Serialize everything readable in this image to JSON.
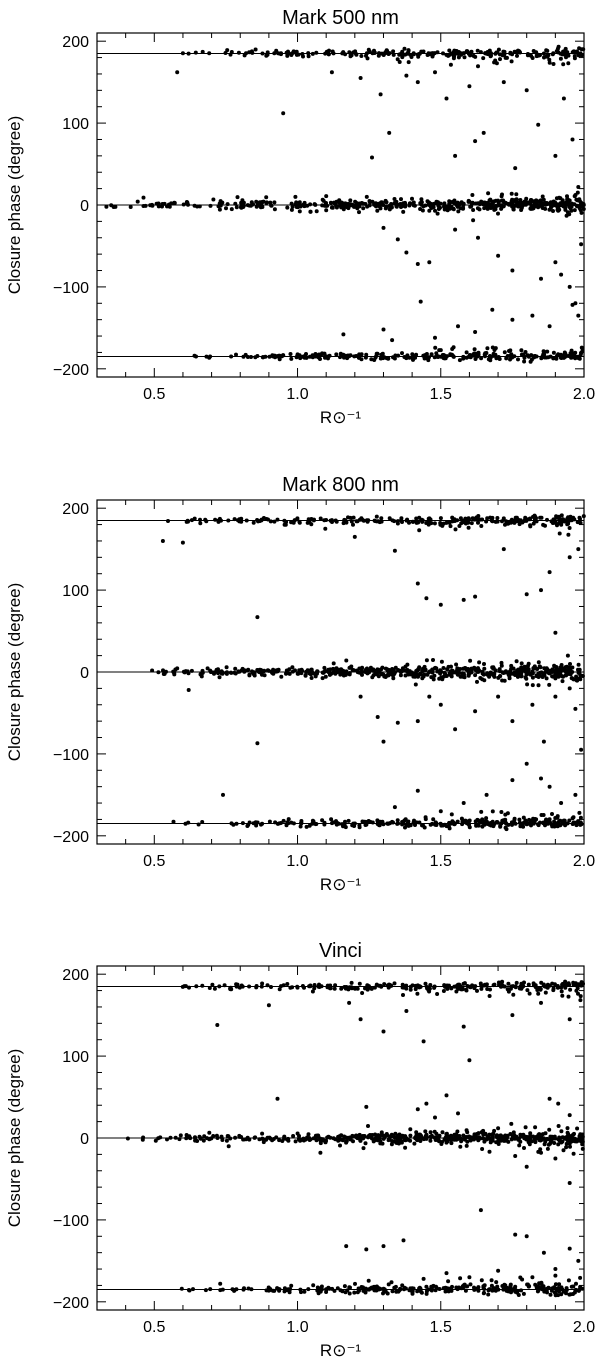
{
  "figure": {
    "background": "#ffffff",
    "ink": "#000000"
  },
  "chart_data": [
    {
      "type": "scatter",
      "title": "Mark 500 nm",
      "xlabel": "R⊙⁻¹",
      "ylabel": "Closure phase (degree)",
      "xlim": [
        0.3,
        2.0
      ],
      "ylim": [
        -210,
        210
      ],
      "xticks": [
        "0.5",
        "1.0",
        "1.5",
        "2.0"
      ],
      "yticks": [
        "200",
        "100",
        "0",
        "−100",
        "−200"
      ],
      "reference_lines_y": [
        185,
        0,
        -185
      ],
      "grid": false,
      "seed": 11,
      "clusters": [
        {
          "y": 185,
          "x_from": 0.5,
          "x_to": 2.0,
          "count": 260,
          "spread": 2.5,
          "tail": -1,
          "tail_prob": 0.15
        },
        {
          "y": 0,
          "x_from": 0.33,
          "x_to": 2.0,
          "count": 520,
          "spread": 3,
          "tail": 0,
          "tail_prob": 0.3
        },
        {
          "y": -185,
          "x_from": 0.6,
          "x_to": 2.0,
          "count": 280,
          "spread": 2.5,
          "tail": 1,
          "tail_prob": 0.22
        }
      ],
      "outliers": [
        [
          0.58,
          162
        ],
        [
          0.95,
          112
        ],
        [
          1.12,
          162
        ],
        [
          1.22,
          155
        ],
        [
          1.26,
          58
        ],
        [
          1.29,
          135
        ],
        [
          1.32,
          88
        ],
        [
          1.38,
          158
        ],
        [
          1.42,
          150
        ],
        [
          1.48,
          162
        ],
        [
          1.52,
          130
        ],
        [
          1.55,
          60
        ],
        [
          1.6,
          145
        ],
        [
          1.62,
          78
        ],
        [
          1.65,
          88
        ],
        [
          1.72,
          150
        ],
        [
          1.76,
          45
        ],
        [
          1.8,
          140
        ],
        [
          1.84,
          98
        ],
        [
          1.9,
          60
        ],
        [
          1.93,
          130
        ],
        [
          1.96,
          80
        ],
        [
          1.98,
          22
        ],
        [
          1.3,
          -28
        ],
        [
          1.35,
          -42
        ],
        [
          1.38,
          -58
        ],
        [
          1.42,
          -72
        ],
        [
          1.46,
          -70
        ],
        [
          1.55,
          -30
        ],
        [
          1.63,
          -40
        ],
        [
          1.7,
          -62
        ],
        [
          1.75,
          -80
        ],
        [
          1.85,
          -90
        ],
        [
          1.9,
          -70
        ],
        [
          1.95,
          -100
        ],
        [
          1.97,
          -120
        ],
        [
          1.98,
          -135
        ],
        [
          1.99,
          -48
        ],
        [
          1.16,
          -158
        ],
        [
          1.3,
          -152
        ],
        [
          1.33,
          -165
        ],
        [
          1.43,
          -118
        ],
        [
          1.48,
          -162
        ],
        [
          1.56,
          -148
        ],
        [
          1.62,
          -155
        ],
        [
          1.68,
          -128
        ],
        [
          1.75,
          -140
        ],
        [
          1.82,
          -135
        ],
        [
          1.88,
          -148
        ],
        [
          1.92,
          -85
        ],
        [
          1.96,
          -122
        ]
      ]
    },
    {
      "type": "scatter",
      "title": "Mark 800 nm",
      "xlabel": "R⊙⁻¹",
      "ylabel": "Closure phase (degree)",
      "xlim": [
        0.3,
        2.0
      ],
      "ylim": [
        -210,
        210
      ],
      "xticks": [
        "0.5",
        "1.0",
        "1.5",
        "2.0"
      ],
      "yticks": [
        "200",
        "100",
        "0",
        "−100",
        "−200"
      ],
      "reference_lines_y": [
        185,
        0,
        -185
      ],
      "grid": false,
      "seed": 29,
      "clusters": [
        {
          "y": 185,
          "x_from": 0.5,
          "x_to": 2.0,
          "count": 270,
          "spread": 2.5,
          "tail": -1,
          "tail_prob": 0.15
        },
        {
          "y": 0,
          "x_from": 0.38,
          "x_to": 2.0,
          "count": 560,
          "spread": 3.5,
          "tail": 0,
          "tail_prob": 0.3
        },
        {
          "y": -185,
          "x_from": 0.55,
          "x_to": 2.0,
          "count": 300,
          "spread": 2.5,
          "tail": 1,
          "tail_prob": 0.22
        }
      ],
      "outliers": [
        [
          0.53,
          160
        ],
        [
          0.6,
          158
        ],
        [
          1.2,
          165
        ],
        [
          1.34,
          148
        ],
        [
          1.42,
          108
        ],
        [
          1.45,
          90
        ],
        [
          1.5,
          82
        ],
        [
          1.58,
          88
        ],
        [
          1.62,
          92
        ],
        [
          1.72,
          150
        ],
        [
          1.8,
          95
        ],
        [
          1.85,
          100
        ],
        [
          1.88,
          122
        ],
        [
          1.9,
          48
        ],
        [
          1.95,
          140
        ],
        [
          1.98,
          150
        ],
        [
          0.86,
          67
        ],
        [
          0.86,
          -87
        ],
        [
          0.62,
          -22
        ],
        [
          1.22,
          -30
        ],
        [
          1.28,
          -55
        ],
        [
          1.3,
          -85
        ],
        [
          1.35,
          -62
        ],
        [
          1.42,
          -60
        ],
        [
          1.46,
          -30
        ],
        [
          1.5,
          -40
        ],
        [
          1.55,
          -70
        ],
        [
          1.62,
          -48
        ],
        [
          1.7,
          -30
        ],
        [
          1.75,
          -60
        ],
        [
          1.82,
          -40
        ],
        [
          1.86,
          -85
        ],
        [
          1.9,
          -30
        ],
        [
          1.95,
          -20
        ],
        [
          1.97,
          -45
        ],
        [
          1.99,
          -95
        ],
        [
          0.74,
          -150
        ],
        [
          1.34,
          -165
        ],
        [
          1.42,
          -145
        ],
        [
          1.5,
          -170
        ],
        [
          1.58,
          -160
        ],
        [
          1.66,
          -150
        ],
        [
          1.75,
          -132
        ],
        [
          1.8,
          -112
        ],
        [
          1.85,
          -130
        ],
        [
          1.88,
          -140
        ],
        [
          1.92,
          -160
        ],
        [
          1.97,
          -150
        ]
      ]
    },
    {
      "type": "scatter",
      "title": "Vinci",
      "xlabel": "R⊙⁻¹",
      "ylabel": "Closure phase (degree)",
      "xlim": [
        0.3,
        2.0
      ],
      "ylim": [
        -210,
        210
      ],
      "xticks": [
        "0.5",
        "1.0",
        "1.5",
        "2.0"
      ],
      "yticks": [
        "200",
        "100",
        "0",
        "−100",
        "−200"
      ],
      "reference_lines_y": [
        185,
        0,
        -185
      ],
      "grid": false,
      "seed": 53,
      "clusters": [
        {
          "y": 185,
          "x_from": 0.5,
          "x_to": 2.0,
          "count": 260,
          "spread": 2.5,
          "tail": -1,
          "tail_prob": 0.15
        },
        {
          "y": 0,
          "x_from": 0.38,
          "x_to": 2.0,
          "count": 520,
          "spread": 3,
          "tail": 0,
          "tail_prob": 0.25
        },
        {
          "y": -185,
          "x_from": 0.55,
          "x_to": 2.0,
          "count": 290,
          "spread": 2.5,
          "tail": 1,
          "tail_prob": 0.2
        }
      ],
      "outliers": [
        [
          0.72,
          138
        ],
        [
          0.9,
          162
        ],
        [
          1.18,
          165
        ],
        [
          1.22,
          145
        ],
        [
          1.3,
          130
        ],
        [
          1.38,
          155
        ],
        [
          1.44,
          118
        ],
        [
          1.58,
          136
        ],
        [
          1.6,
          95
        ],
        [
          1.75,
          150
        ],
        [
          1.85,
          165
        ],
        [
          1.95,
          145
        ],
        [
          0.93,
          48
        ],
        [
          1.24,
          38
        ],
        [
          1.42,
          35
        ],
        [
          1.45,
          42
        ],
        [
          1.48,
          25
        ],
        [
          1.52,
          52
        ],
        [
          1.56,
          30
        ],
        [
          1.7,
          12
        ],
        [
          1.88,
          48
        ],
        [
          1.91,
          42
        ],
        [
          1.95,
          28
        ],
        [
          1.08,
          -18
        ],
        [
          1.76,
          -22
        ],
        [
          1.8,
          -35
        ],
        [
          1.85,
          -18
        ],
        [
          1.9,
          -25
        ],
        [
          1.95,
          -55
        ],
        [
          1.64,
          -88
        ],
        [
          1.17,
          -132
        ],
        [
          1.24,
          -136
        ],
        [
          1.3,
          -132
        ],
        [
          1.37,
          -125
        ],
        [
          1.76,
          -118
        ],
        [
          1.8,
          -120
        ],
        [
          1.86,
          -140
        ],
        [
          1.9,
          -160
        ],
        [
          1.95,
          -135
        ],
        [
          1.98,
          -150
        ],
        [
          0.73,
          -178
        ],
        [
          1.44,
          -172
        ],
        [
          1.52,
          -165
        ],
        [
          1.6,
          -170
        ],
        [
          1.7,
          -162
        ],
        [
          1.82,
          -170
        ],
        [
          1.9,
          -168
        ]
      ]
    }
  ]
}
